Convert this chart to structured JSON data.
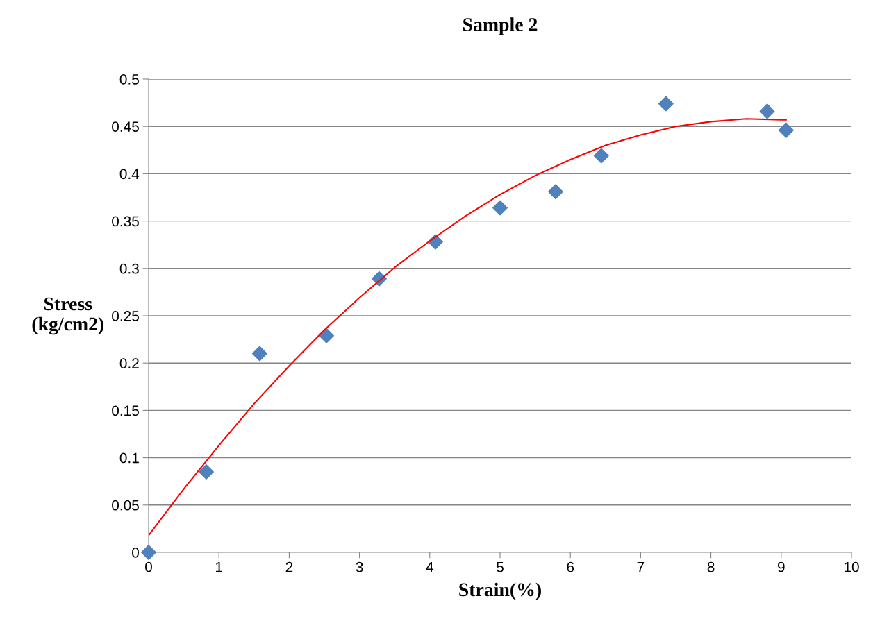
{
  "chart_data": {
    "type": "scatter",
    "title": "Sample 2",
    "xlabel": "Strain(%)",
    "ylabel": "Stress\n(kg/cm2)",
    "xlim": [
      0,
      10
    ],
    "xticks": [
      0,
      1,
      2,
      3,
      4,
      5,
      6,
      7,
      8,
      9,
      10
    ],
    "ylim": [
      0,
      0.5
    ],
    "yticks": [
      0,
      0.05,
      0.1,
      0.15,
      0.2,
      0.25,
      0.3,
      0.35,
      0.4,
      0.45,
      0.5
    ],
    "grid": "y",
    "series": [
      {
        "marker": "diamond",
        "color": "#4f81bd",
        "x": [
          0,
          0.82,
          1.58,
          2.53,
          3.28,
          4.08,
          5.0,
          5.79,
          6.44,
          7.36,
          8.8,
          9.07
        ],
        "values": [
          0,
          0.085,
          0.21,
          0.229,
          0.289,
          0.328,
          0.364,
          0.381,
          0.419,
          0.474,
          0.466,
          0.446
        ]
      },
      {
        "type": "line",
        "marker": "none",
        "color": "#ff0000",
        "line_style": "solid",
        "x": [
          0,
          0.5,
          1,
          1.5,
          2,
          2.5,
          3,
          3.5,
          4,
          4.5,
          5,
          5.5,
          6,
          6.5,
          7,
          7.5,
          8,
          8.5,
          9,
          9.07
        ],
        "values": [
          0.018,
          0.067,
          0.113,
          0.157,
          0.197,
          0.235,
          0.269,
          0.301,
          0.329,
          0.355,
          0.378,
          0.398,
          0.415,
          0.43,
          0.441,
          0.45,
          0.455,
          0.458,
          0.457,
          0.457
        ]
      }
    ]
  }
}
